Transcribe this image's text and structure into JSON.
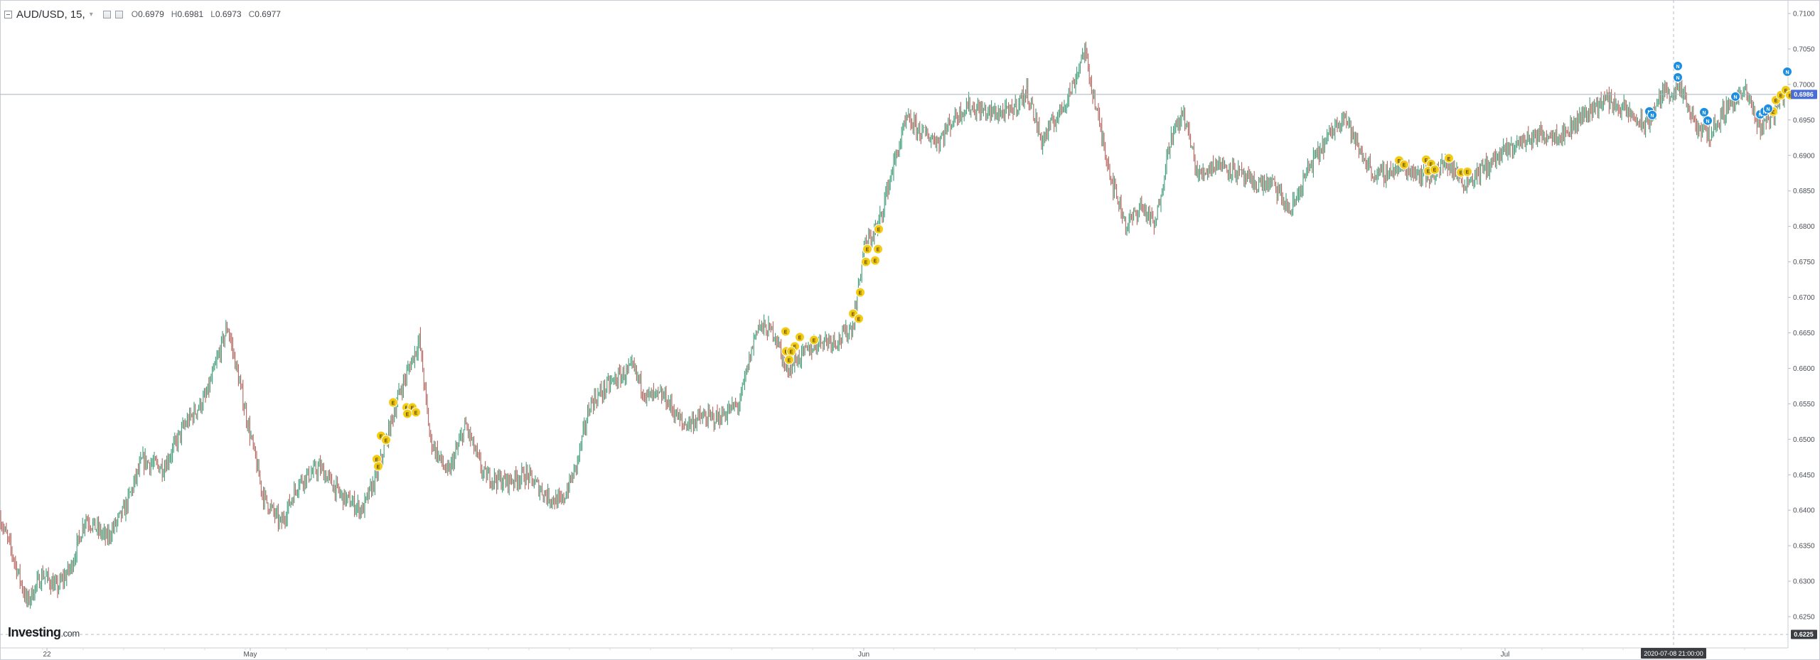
{
  "header": {
    "symbol": "AUD/USD, 15,",
    "caret": "▾",
    "ohlc": {
      "open_label": "O",
      "open": "0.6979",
      "high_label": "H",
      "high": "0.6981",
      "low_label": "L",
      "low": "0.6973",
      "close_label": "C",
      "close": "0.6977"
    }
  },
  "watermark": {
    "brand": "Investing",
    "suffix": ".com"
  },
  "chart_data": {
    "type": "candlestick",
    "ylim": [
      0.6225,
      0.711
    ],
    "y_ticks": [
      "0.6250",
      "0.6300",
      "0.6350",
      "0.6400",
      "0.6450",
      "0.6500",
      "0.6550",
      "0.6600",
      "0.6650",
      "0.6700",
      "0.6750",
      "0.6800",
      "0.6850",
      "0.6900",
      "0.6950",
      "0.7000",
      "0.7050",
      "0.7100"
    ],
    "x_ticks": [
      "22",
      "May",
      "Jun",
      "Jul"
    ],
    "current_price": "0.6986",
    "lower_bound_label": "0.6225",
    "crosshair_time": "2020-07-08 21:00:00",
    "price_path": [
      {
        "x": 0,
        "y": 0.639
      },
      {
        "x": 20,
        "y": 0.633
      },
      {
        "x": 38,
        "y": 0.627
      },
      {
        "x": 60,
        "y": 0.631
      },
      {
        "x": 80,
        "y": 0.629
      },
      {
        "x": 100,
        "y": 0.632
      },
      {
        "x": 120,
        "y": 0.639
      },
      {
        "x": 150,
        "y": 0.636
      },
      {
        "x": 175,
        "y": 0.64
      },
      {
        "x": 200,
        "y": 0.647
      },
      {
        "x": 230,
        "y": 0.646
      },
      {
        "x": 260,
        "y": 0.652
      },
      {
        "x": 290,
        "y": 0.656
      },
      {
        "x": 320,
        "y": 0.666
      },
      {
        "x": 345,
        "y": 0.654
      },
      {
        "x": 370,
        "y": 0.642
      },
      {
        "x": 395,
        "y": 0.638
      },
      {
        "x": 420,
        "y": 0.644
      },
      {
        "x": 450,
        "y": 0.646
      },
      {
        "x": 480,
        "y": 0.642
      },
      {
        "x": 510,
        "y": 0.64
      },
      {
        "x": 530,
        "y": 0.645
      },
      {
        "x": 560,
        "y": 0.656
      },
      {
        "x": 590,
        "y": 0.664
      },
      {
        "x": 605,
        "y": 0.65
      },
      {
        "x": 630,
        "y": 0.645
      },
      {
        "x": 655,
        "y": 0.652
      },
      {
        "x": 680,
        "y": 0.645
      },
      {
        "x": 710,
        "y": 0.644
      },
      {
        "x": 740,
        "y": 0.645
      },
      {
        "x": 770,
        "y": 0.642
      },
      {
        "x": 790,
        "y": 0.641
      },
      {
        "x": 810,
        "y": 0.646
      },
      {
        "x": 830,
        "y": 0.655
      },
      {
        "x": 860,
        "y": 0.658
      },
      {
        "x": 890,
        "y": 0.66
      },
      {
        "x": 910,
        "y": 0.656
      },
      {
        "x": 935,
        "y": 0.656
      },
      {
        "x": 960,
        "y": 0.652
      },
      {
        "x": 985,
        "y": 0.653
      },
      {
        "x": 1010,
        "y": 0.653
      },
      {
        "x": 1040,
        "y": 0.655
      },
      {
        "x": 1065,
        "y": 0.666
      },
      {
        "x": 1090,
        "y": 0.665
      },
      {
        "x": 1105,
        "y": 0.66
      },
      {
        "x": 1130,
        "y": 0.662
      },
      {
        "x": 1155,
        "y": 0.664
      },
      {
        "x": 1180,
        "y": 0.664
      },
      {
        "x": 1200,
        "y": 0.666
      },
      {
        "x": 1215,
        "y": 0.677
      },
      {
        "x": 1235,
        "y": 0.68
      },
      {
        "x": 1255,
        "y": 0.688
      },
      {
        "x": 1275,
        "y": 0.695
      },
      {
        "x": 1300,
        "y": 0.693
      },
      {
        "x": 1320,
        "y": 0.692
      },
      {
        "x": 1340,
        "y": 0.695
      },
      {
        "x": 1360,
        "y": 0.697
      },
      {
        "x": 1390,
        "y": 0.696
      },
      {
        "x": 1420,
        "y": 0.696
      },
      {
        "x": 1445,
        "y": 0.699
      },
      {
        "x": 1465,
        "y": 0.692
      },
      {
        "x": 1490,
        "y": 0.696
      },
      {
        "x": 1510,
        "y": 0.7
      },
      {
        "x": 1525,
        "y": 0.705
      },
      {
        "x": 1545,
        "y": 0.695
      },
      {
        "x": 1565,
        "y": 0.686
      },
      {
        "x": 1585,
        "y": 0.68
      },
      {
        "x": 1605,
        "y": 0.683
      },
      {
        "x": 1625,
        "y": 0.68
      },
      {
        "x": 1645,
        "y": 0.692
      },
      {
        "x": 1665,
        "y": 0.696
      },
      {
        "x": 1685,
        "y": 0.687
      },
      {
        "x": 1710,
        "y": 0.689
      },
      {
        "x": 1735,
        "y": 0.688
      },
      {
        "x": 1760,
        "y": 0.686
      },
      {
        "x": 1790,
        "y": 0.686
      },
      {
        "x": 1815,
        "y": 0.682
      },
      {
        "x": 1840,
        "y": 0.688
      },
      {
        "x": 1865,
        "y": 0.692
      },
      {
        "x": 1890,
        "y": 0.696
      },
      {
        "x": 1910,
        "y": 0.691
      },
      {
        "x": 1935,
        "y": 0.687
      },
      {
        "x": 1960,
        "y": 0.688
      },
      {
        "x": 1985,
        "y": 0.688
      },
      {
        "x": 2010,
        "y": 0.687
      },
      {
        "x": 2035,
        "y": 0.689
      },
      {
        "x": 2060,
        "y": 0.686
      },
      {
        "x": 2085,
        "y": 0.688
      },
      {
        "x": 2110,
        "y": 0.69
      },
      {
        "x": 2140,
        "y": 0.692
      },
      {
        "x": 2170,
        "y": 0.693
      },
      {
        "x": 2200,
        "y": 0.693
      },
      {
        "x": 2230,
        "y": 0.696
      },
      {
        "x": 2260,
        "y": 0.698
      },
      {
        "x": 2290,
        "y": 0.696
      },
      {
        "x": 2315,
        "y": 0.694
      },
      {
        "x": 2340,
        "y": 0.699
      },
      {
        "x": 2365,
        "y": 0.699
      },
      {
        "x": 2385,
        "y": 0.694
      },
      {
        "x": 2405,
        "y": 0.693
      },
      {
        "x": 2430,
        "y": 0.697
      },
      {
        "x": 2455,
        "y": 0.699
      },
      {
        "x": 2475,
        "y": 0.694
      },
      {
        "x": 2495,
        "y": 0.696
      },
      {
        "x": 2510,
        "y": 0.699
      }
    ],
    "event_markers": [
      {
        "x": 553,
        "y": 0.6552,
        "kind": "economic",
        "label": "E"
      },
      {
        "x": 572,
        "y": 0.6545,
        "kind": "economic",
        "label": "E"
      },
      {
        "x": 580,
        "y": 0.6545,
        "kind": "economic",
        "label": "E"
      },
      {
        "x": 585,
        "y": 0.6538,
        "kind": "economic",
        "label": "E"
      },
      {
        "x": 573,
        "y": 0.6536,
        "kind": "economic",
        "label": "E"
      },
      {
        "x": 536,
        "y": 0.6505,
        "kind": "economic",
        "label": "E"
      },
      {
        "x": 543,
        "y": 0.6499,
        "kind": "economic",
        "label": "E"
      },
      {
        "x": 530,
        "y": 0.6472,
        "kind": "economic",
        "label": "E"
      },
      {
        "x": 532,
        "y": 0.6462,
        "kind": "economic",
        "label": "E"
      },
      {
        "x": 1105,
        "y": 0.6652,
        "kind": "economic",
        "label": "E"
      },
      {
        "x": 1125,
        "y": 0.6644,
        "kind": "economic",
        "label": "E"
      },
      {
        "x": 1145,
        "y": 0.664,
        "kind": "economic",
        "label": "E"
      },
      {
        "x": 1118,
        "y": 0.6631,
        "kind": "economic",
        "label": "E"
      },
      {
        "x": 1106,
        "y": 0.6624,
        "kind": "economic",
        "label": "E"
      },
      {
        "x": 1113,
        "y": 0.6624,
        "kind": "economic",
        "label": "E"
      },
      {
        "x": 1110,
        "y": 0.6612,
        "kind": "economic",
        "label": "E"
      },
      {
        "x": 1200,
        "y": 0.6677,
        "kind": "economic",
        "label": "E"
      },
      {
        "x": 1208,
        "y": 0.667,
        "kind": "economic",
        "label": "E"
      },
      {
        "x": 1210,
        "y": 0.6707,
        "kind": "economic",
        "label": "E"
      },
      {
        "x": 1218,
        "y": 0.675,
        "kind": "economic",
        "label": "E"
      },
      {
        "x": 1231,
        "y": 0.6752,
        "kind": "economic",
        "label": "E"
      },
      {
        "x": 1220,
        "y": 0.6768,
        "kind": "economic",
        "label": "E"
      },
      {
        "x": 1235,
        "y": 0.6768,
        "kind": "economic",
        "label": "E"
      },
      {
        "x": 1236,
        "y": 0.6796,
        "kind": "economic",
        "label": "E"
      },
      {
        "x": 1968,
        "y": 0.6893,
        "kind": "economic",
        "label": "E"
      },
      {
        "x": 1975,
        "y": 0.6887,
        "kind": "economic",
        "label": "E"
      },
      {
        "x": 2006,
        "y": 0.6894,
        "kind": "economic",
        "label": "E"
      },
      {
        "x": 2013,
        "y": 0.6888,
        "kind": "economic",
        "label": "E"
      },
      {
        "x": 2009,
        "y": 0.6878,
        "kind": "economic",
        "label": "E"
      },
      {
        "x": 2018,
        "y": 0.688,
        "kind": "economic",
        "label": "E"
      },
      {
        "x": 2038,
        "y": 0.6896,
        "kind": "economic",
        "label": "E"
      },
      {
        "x": 2055,
        "y": 0.6876,
        "kind": "economic",
        "label": "E"
      },
      {
        "x": 2064,
        "y": 0.6877,
        "kind": "economic",
        "label": "E"
      },
      {
        "x": 2498,
        "y": 0.6978,
        "kind": "economic",
        "label": "E"
      },
      {
        "x": 2505,
        "y": 0.6985,
        "kind": "economic",
        "label": "E"
      },
      {
        "x": 2494,
        "y": 0.6962,
        "kind": "economic",
        "label": "E"
      },
      {
        "x": 2512,
        "y": 0.6992,
        "kind": "economic",
        "label": "E"
      },
      {
        "x": 2518,
        "y": 0.6985,
        "kind": "economic",
        "label": "E"
      },
      {
        "x": 2360,
        "y": 0.7026,
        "kind": "news",
        "label": "N"
      },
      {
        "x": 2360,
        "y": 0.701,
        "kind": "news",
        "label": "N"
      },
      {
        "x": 2320,
        "y": 0.6962,
        "kind": "news",
        "label": "N"
      },
      {
        "x": 2324,
        "y": 0.6957,
        "kind": "news",
        "label": "N"
      },
      {
        "x": 2397,
        "y": 0.6961,
        "kind": "news",
        "label": "N"
      },
      {
        "x": 2402,
        "y": 0.6949,
        "kind": "news",
        "label": "N"
      },
      {
        "x": 2441,
        "y": 0.6983,
        "kind": "news",
        "label": "N"
      },
      {
        "x": 2476,
        "y": 0.6958,
        "kind": "news",
        "label": "N"
      },
      {
        "x": 2482,
        "y": 0.6962,
        "kind": "news",
        "label": "N"
      },
      {
        "x": 2487,
        "y": 0.6966,
        "kind": "news",
        "label": "N"
      },
      {
        "x": 2514,
        "y": 0.7018,
        "kind": "news",
        "label": "N"
      }
    ],
    "colors": {
      "up_candle": "#3f9c77",
      "down_candle": "#b2655d",
      "economic_marker": "#f3cb15",
      "news_marker": "#1e8fe0",
      "price_line": "#a9b2bd",
      "price_tag": "#4a6dd4",
      "time_tag": "#3a3d41",
      "axis_text": "#4a4f55"
    }
  }
}
